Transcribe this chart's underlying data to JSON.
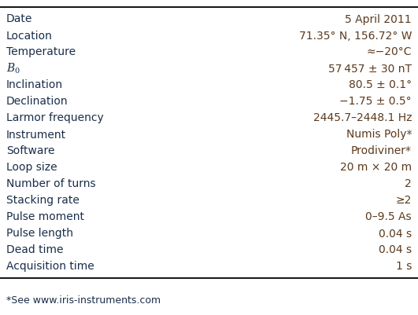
{
  "rows": [
    [
      "Date",
      "5 April 2011"
    ],
    [
      "Location",
      "71.35° N, 156.72° W"
    ],
    [
      "Temperature",
      "≈−20°C"
    ],
    [
      "B0",
      "57 457 ± 30 nT"
    ],
    [
      "Inclination",
      "80.5 ± 0.1°"
    ],
    [
      "Declination",
      "−1.75 ± 0.5°"
    ],
    [
      "Larmor frequency",
      "2445.7–2448.1 Hz"
    ],
    [
      "Instrument",
      "Numis Poly*"
    ],
    [
      "Software",
      "Prodiviner*"
    ],
    [
      "Loop size",
      "20 m × 20 m"
    ],
    [
      "Number of turns",
      "2"
    ],
    [
      "Stacking rate",
      "≥2"
    ],
    [
      "Pulse moment",
      "0–9.5 As"
    ],
    [
      "Pulse length",
      "0.04 s"
    ],
    [
      "Dead time",
      "0.04 s"
    ],
    [
      "Acquisition time",
      "1 s"
    ]
  ],
  "footnote": "*See www.iris-instruments.com",
  "label_color": "#1a2e4a",
  "value_color": "#5c3a1e",
  "line_color": "#1a1a1a",
  "bg_color": "#ffffff",
  "font_size": 10.0,
  "footnote_font_size": 9.0
}
